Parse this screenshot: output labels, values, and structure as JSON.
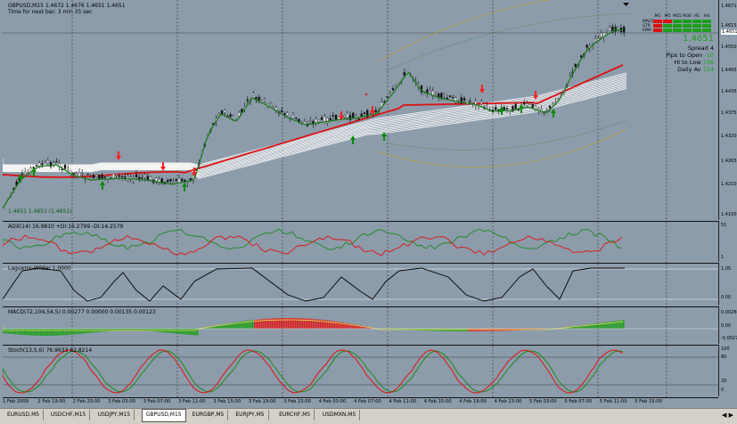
{
  "main": {
    "title_line1": "GBPUSD,M15  1.4672 1.4676 1.4651 1.4651",
    "title_line2": "Time for next bar: 3 min 35 sec",
    "bottom_label": "1.4651 1.4651 (1.4651)",
    "price_ticks": [
      "1.4671",
      "1.4615",
      "1.4550",
      "1.4495",
      "1.4435",
      "1.4375",
      "1.4320",
      "1.4265",
      "1.4210",
      "1.4150"
    ],
    "current_price": "1.4651"
  },
  "dashboard": {
    "tf_labels": [
      "M1",
      "M5",
      "M15",
      "M30",
      "H1",
      "H4"
    ],
    "row_labels": [
      "MACD",
      "STR",
      "EMA"
    ],
    "big_price": "1.4651",
    "rows": [
      {
        "label": "Spread",
        "value": "4"
      },
      {
        "label": "Pips to Open",
        "value": "-10"
      },
      {
        "label": "Hi to Low",
        "value": "336"
      },
      {
        "label": "Daily Av",
        "value": "154"
      }
    ]
  },
  "indicators": {
    "adx_label": "ADX(14) 16.9810 +DI:16.2799 -DI:14.2579",
    "adx_ticks": [
      "51",
      "1"
    ],
    "laguerre_label": "Laguerre-Wilder 1.0000",
    "laguerre_ticks": [
      "1.05",
      "0.00"
    ],
    "macd_label": "MACD(72,104,54,5) 0.00277 0.00000 0.00135 0.00123",
    "macd_ticks": [
      "0.00280",
      "0.00",
      "-0.00270"
    ],
    "stoch_label": "Stoch(13,5,6) 76.9633 82.8214",
    "stoch_ticks": [
      "100",
      "80",
      "20",
      "0"
    ]
  },
  "time_axis": [
    "1 Feb 2009",
    "2 Feb 19:00",
    "2 Feb 23:00",
    "3 Feb 03:00",
    "3 Feb 07:00",
    "3 Feb 11:00",
    "3 Feb 15:00",
    "3 Feb 19:00",
    "3 Feb 23:00",
    "4 Feb 03:00",
    "4 Feb 07:00",
    "4 Feb 11:00",
    "4 Feb 15:00",
    "4 Feb 19:00",
    "4 Feb 23:00",
    "5 Feb 03:00",
    "5 Feb 07:00",
    "5 Feb 11:00",
    "5 Feb 15:00"
  ],
  "tabs": [
    "EURUSD,M5",
    "USDCHF,M15",
    "USDJPY,M15",
    "GBPUSD,M15",
    "EURGBP,M5",
    "EURJPY,M5",
    "EURCHF,M5",
    "USDMXN,M5"
  ],
  "active_tab": "GBPUSD,M15",
  "colors": {
    "background": "#8c9cab",
    "bull": "#1a7f1a",
    "bear": "#e01010",
    "ema_red": "#dd1111",
    "ema_green": "#1e7a1e"
  }
}
